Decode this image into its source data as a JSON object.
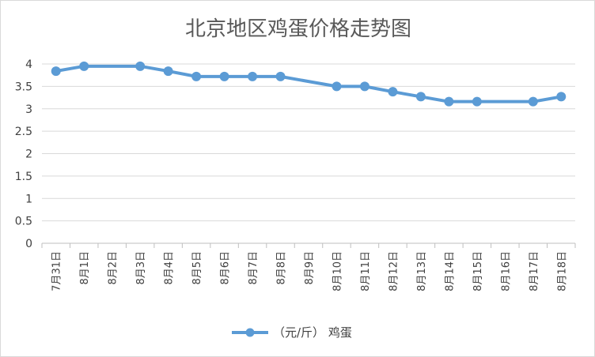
{
  "chart_data": {
    "type": "line",
    "title": "北京地区鸡蛋价格走势图",
    "categories": [
      "7月31日",
      "8月1日",
      "8月2日",
      "8月3日",
      "8月4日",
      "8月5日",
      "8月6日",
      "8月7日",
      "8月8日",
      "8月9日",
      "8月10日",
      "8月11日",
      "8月12日",
      "8月13日",
      "8月14日",
      "8月15日",
      "8月16日",
      "8月17日",
      "8月18日"
    ],
    "series": [
      {
        "name": "（元/斤） 鸡蛋",
        "x": [
          "7月31日",
          "8月1日",
          "8月3日",
          "8月4日",
          "8月5日",
          "8月6日",
          "8月7日",
          "8月8日",
          "8月10日",
          "8月11日",
          "8月12日",
          "8月13日",
          "8月14日",
          "8月15日",
          "8月17日",
          "8月18日"
        ],
        "values": [
          3.84,
          3.95,
          3.95,
          3.84,
          3.72,
          3.72,
          3.72,
          3.72,
          3.5,
          3.5,
          3.38,
          3.27,
          3.16,
          3.16,
          3.16,
          3.27
        ]
      }
    ],
    "ylim": [
      0,
      4
    ],
    "yticks": [
      "0",
      "0.5",
      "1",
      "1.5",
      "2",
      "2.5",
      "3",
      "3.5",
      "4"
    ],
    "grid": true,
    "legend": "bottom",
    "colors": {
      "series": "#5b9bd5",
      "grid": "#d9d9d9",
      "axis": "#bfbfbf"
    }
  }
}
